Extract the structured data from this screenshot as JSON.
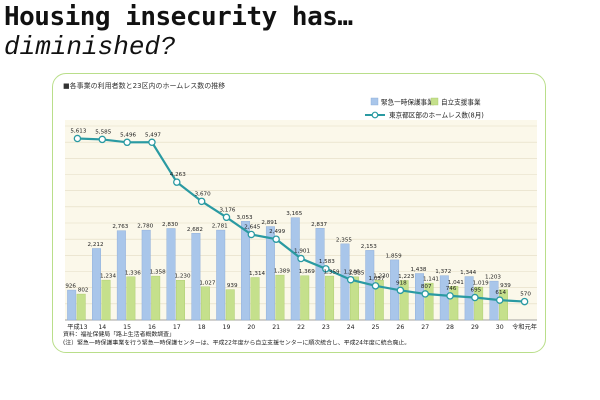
{
  "slide": {
    "title_line1": "Housing insecurity has…",
    "title_line2": "diminished?"
  },
  "chart_data": {
    "type": "bar",
    "title": "■各事業の利用者数と23区内のホームレス数の推移",
    "categories": [
      "平成13",
      "14",
      "15",
      "16",
      "17",
      "18",
      "19",
      "20",
      "21",
      "22",
      "23",
      "24",
      "25",
      "26",
      "27",
      "28",
      "29",
      "30",
      "令和元年"
    ],
    "series": [
      {
        "name": "緊急一時保護事業",
        "chart": "bar",
        "color": "#a9c6ea",
        "values": [
          926,
          2212,
          2763,
          2780,
          2830,
          2682,
          2781,
          3053,
          2891,
          3165,
          2837,
          2355,
          2153,
          1859,
          1438,
          1372,
          1344,
          1203,
          null
        ]
      },
      {
        "name": "自立支援事業",
        "chart": "bar",
        "color": "#c5e08c",
        "values": [
          802,
          1234,
          1336,
          1358,
          1230,
          1027,
          939,
          1314,
          1389,
          1369,
          1359,
          1335,
          1230,
          1223,
          1141,
          1041,
          1019,
          939,
          null
        ]
      },
      {
        "name": "東京都区部のホームレス数(8月)",
        "chart": "line",
        "color": "#2a9aa2",
        "values": [
          5613,
          5585,
          5496,
          5497,
          4263,
          3670,
          3176,
          2645,
          2499,
          1901,
          1583,
          1246,
          1057,
          918,
          807,
          746,
          695,
          614,
          570
        ]
      }
    ],
    "ylim": [
      0,
      6000
    ],
    "grid": true,
    "legend_position": "top-right",
    "footnotes": [
      "資料：福祉保健局「路上生活者概数調査」",
      "(注）緊急一時保護事業を行う緊急一時保護センターは、平成22年度から自立支援センターに順次統合し、平成24年度に統合廃止。"
    ]
  }
}
